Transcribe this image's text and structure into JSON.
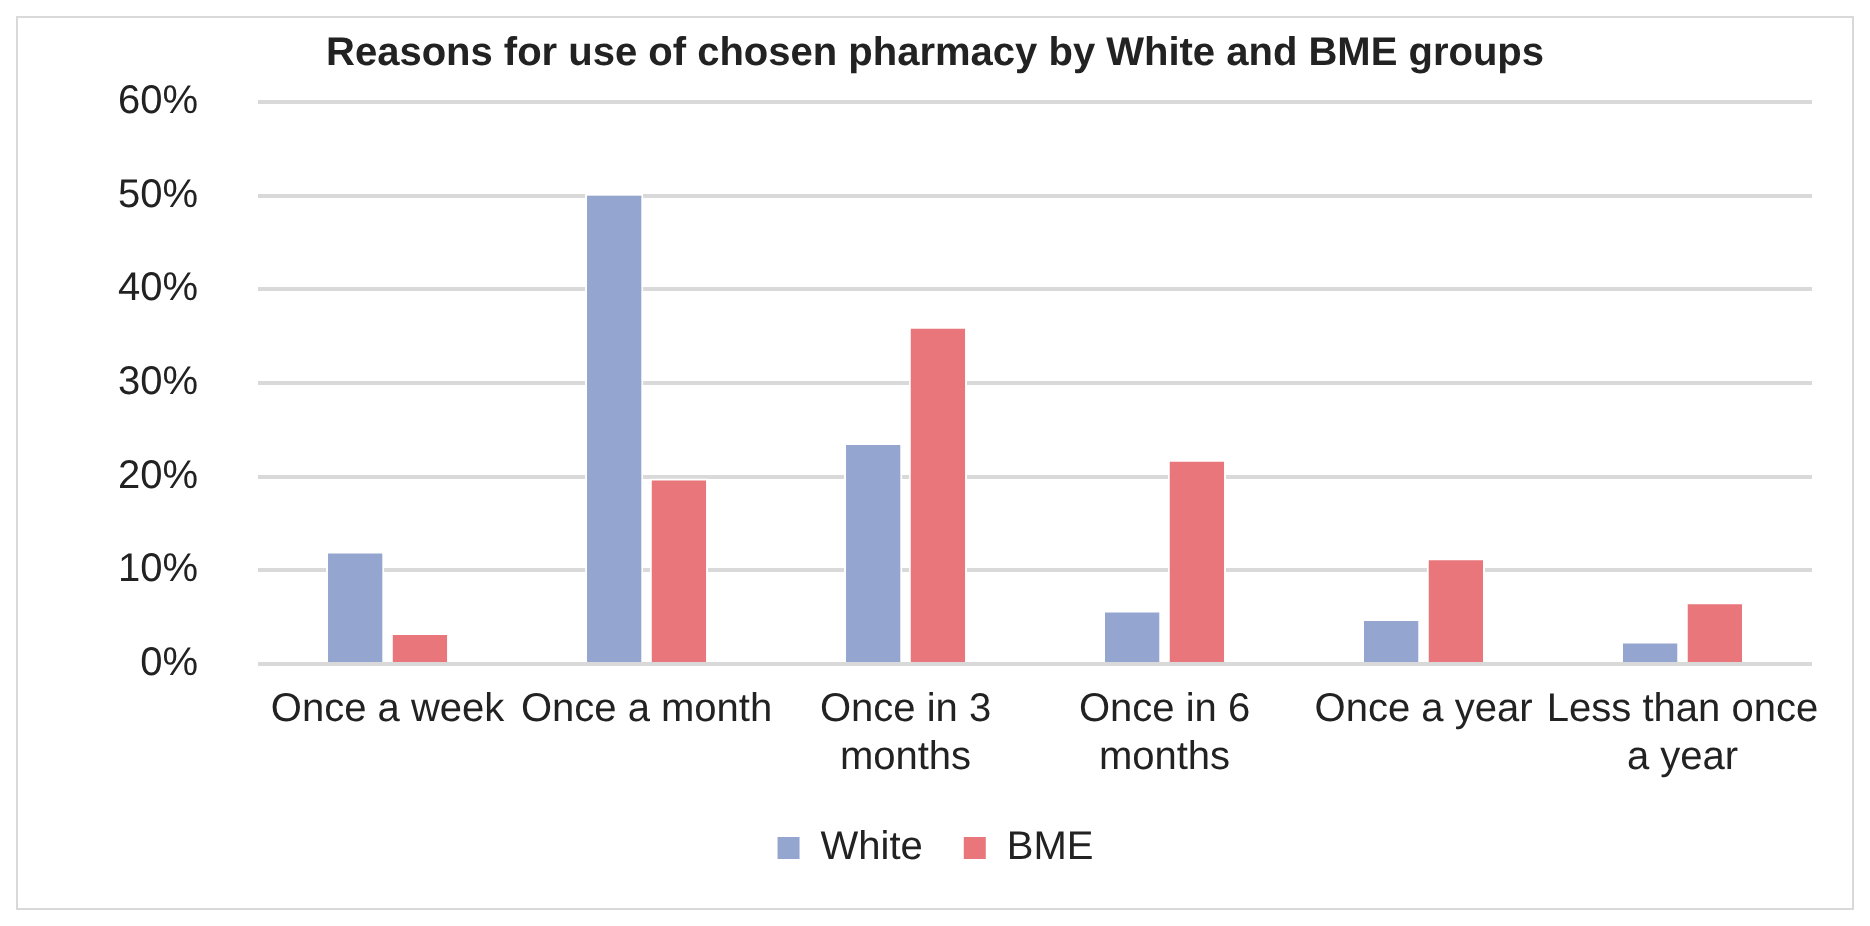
{
  "chart_data": {
    "type": "bar",
    "title": "Reasons for use of chosen pharmacy by White and BME groups",
    "categories": [
      "Once a week",
      "Once a month",
      "Once in 3 months",
      "Once in 6 months",
      "Once a year",
      "Less than once a year"
    ],
    "series": [
      {
        "name": "White",
        "color": "#94a5cf",
        "values": [
          12,
          50.2,
          23.6,
          5.7,
          4.8,
          2.4
        ]
      },
      {
        "name": "BME",
        "color": "#e8767a",
        "values": [
          3.3,
          19.8,
          36,
          21.8,
          11.3,
          6.6
        ]
      }
    ],
    "ylim": [
      0,
      60
    ],
    "yticks": [
      {
        "value": 0,
        "label": "0%"
      },
      {
        "value": 10,
        "label": "10%"
      },
      {
        "value": 20,
        "label": "20%"
      },
      {
        "value": 30,
        "label": "30%"
      },
      {
        "value": 40,
        "label": "40%"
      },
      {
        "value": 50,
        "label": "50%"
      },
      {
        "value": 60,
        "label": "60%"
      }
    ],
    "grid": "y",
    "legend": "bottom"
  }
}
